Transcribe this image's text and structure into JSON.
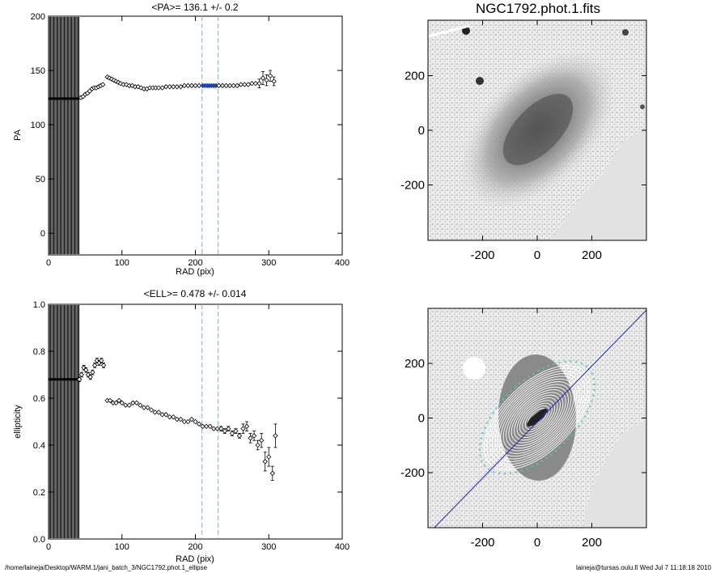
{
  "footer": {
    "path": "/home/laineja/Desktop/WARM.1/jani_batch_3/NGC1792.phot.1_ellipse",
    "user_date": "laineja@tursas.oulu.fi  Wed Jul  7 11:18:18 2010"
  },
  "colors": {
    "pa_fit": "#1f3fb4",
    "dashed_lines": "#40d0d0",
    "image_gray": "#808080",
    "contour": "#ffffff",
    "major_axis_line": "#2020c0",
    "outer_contour": "#55c8c8"
  },
  "chart_data": [
    {
      "type": "scatter",
      "title": "<PA>= 136.1 +/-   0.2",
      "xlabel": "RAD (pix)",
      "ylabel": "PA",
      "xlim": [
        0,
        400
      ],
      "ylim": [
        -20,
        200
      ],
      "xticks": [
        0,
        100,
        200,
        300,
        400
      ],
      "yticks": [
        0,
        50,
        100,
        150,
        200
      ],
      "dense_band": {
        "x_from": 0,
        "x_to": 42,
        "line_value": 124
      },
      "vlines_dashed": [
        209,
        231
      ],
      "series": [
        {
          "x": [
            44,
            47,
            50,
            53,
            56,
            59,
            62,
            65,
            68,
            71,
            74
          ],
          "y": [
            125,
            126,
            128,
            129,
            131,
            133,
            134,
            134,
            135,
            136,
            137
          ]
        },
        {
          "x": [
            80,
            83,
            86,
            89,
            92,
            95,
            98,
            102,
            106,
            110,
            114,
            118,
            122,
            126,
            130,
            134,
            138,
            142,
            146,
            150,
            155,
            160,
            165,
            170,
            175,
            180,
            185,
            190,
            195,
            200,
            205
          ],
          "y": [
            144,
            143,
            142,
            141,
            140,
            139,
            138,
            137,
            137,
            136,
            136,
            135,
            135,
            134,
            133,
            133,
            134,
            134,
            134,
            134,
            134,
            135,
            135,
            135,
            135,
            135,
            136,
            136,
            136,
            136,
            136
          ]
        },
        {
          "x": [
            210,
            213,
            216,
            219,
            222,
            225,
            228
          ],
          "y": [
            136,
            136,
            136,
            136,
            136,
            136,
            136
          ],
          "name_color": "blue"
        },
        {
          "x": [
            232,
            237,
            242,
            247,
            252,
            257,
            262,
            267,
            272,
            277,
            282
          ],
          "y": [
            136,
            136,
            136,
            136,
            136,
            136,
            137,
            137,
            137,
            138,
            138
          ]
        },
        {
          "x": [
            287,
            292,
            297,
            302,
            307
          ],
          "y": [
            138,
            143,
            141,
            145,
            140
          ],
          "err": [
            4,
            6,
            5,
            5,
            4
          ]
        }
      ]
    },
    {
      "type": "scatter",
      "title": "<ELL>= 0.478 +/-   0.014",
      "xlabel": "RAD (pix)",
      "ylabel": "ellipticity",
      "xlim": [
        0,
        400
      ],
      "ylim": [
        0.0,
        1.0
      ],
      "xticks": [
        0,
        100,
        200,
        300,
        400
      ],
      "yticks": [
        0.0,
        0.2,
        0.4,
        0.6,
        0.8,
        1.0
      ],
      "dense_band": {
        "x_from": 0,
        "x_to": 42,
        "line_value": 0.68
      },
      "vlines_dashed": [
        209,
        231
      ],
      "series": [
        {
          "x": [
            42,
            45,
            48,
            51,
            54,
            57,
            60,
            63,
            66,
            69,
            72,
            75
          ],
          "y": [
            0.68,
            0.7,
            0.73,
            0.72,
            0.7,
            0.69,
            0.71,
            0.74,
            0.76,
            0.75,
            0.76,
            0.74
          ],
          "err": [
            0.01,
            0.01,
            0.01,
            0.01,
            0.01,
            0.01,
            0.01,
            0.01,
            0.01,
            0.01,
            0.01,
            0.01
          ]
        },
        {
          "x": [
            80,
            84,
            88,
            92,
            96,
            100,
            105,
            110,
            115,
            120,
            125,
            130,
            135,
            140,
            145,
            150,
            155,
            160,
            165,
            170,
            175,
            180,
            185,
            190,
            195,
            200,
            205
          ],
          "y": [
            0.59,
            0.59,
            0.58,
            0.58,
            0.59,
            0.58,
            0.57,
            0.57,
            0.58,
            0.58,
            0.57,
            0.56,
            0.56,
            0.55,
            0.54,
            0.54,
            0.53,
            0.53,
            0.52,
            0.52,
            0.51,
            0.51,
            0.5,
            0.5,
            0.51,
            0.5,
            0.49
          ]
        },
        {
          "x": [
            210,
            215,
            220,
            225,
            230
          ],
          "y": [
            0.48,
            0.48,
            0.48,
            0.47,
            0.47
          ]
        },
        {
          "x": [
            235,
            240,
            245,
            250,
            255,
            260,
            265,
            270,
            275,
            280,
            285,
            290,
            295,
            300,
            305
          ],
          "y": [
            0.47,
            0.46,
            0.47,
            0.45,
            0.46,
            0.44,
            0.47,
            0.48,
            0.43,
            0.44,
            0.4,
            0.42,
            0.33,
            0.35,
            0.28
          ],
          "err": [
            0.01,
            0.01,
            0.01,
            0.01,
            0.01,
            0.01,
            0.02,
            0.02,
            0.02,
            0.02,
            0.02,
            0.03,
            0.04,
            0.04,
            0.03
          ]
        },
        {
          "x": [
            309
          ],
          "y": [
            0.44
          ],
          "err": [
            0.05
          ]
        }
      ]
    },
    {
      "type": "heatmap",
      "title": "NGC1792.phot.1.fits",
      "xlim": [
        -400,
        400
      ],
      "ylim": [
        -400,
        400
      ],
      "xticks": [
        -200,
        0,
        200
      ],
      "yticks": [
        -200,
        0,
        200
      ],
      "galaxy_pa_deg": 136
    },
    {
      "type": "heatmap",
      "title": "",
      "xlim": [
        -400,
        400
      ],
      "ylim": [
        -400,
        400
      ],
      "xticks": [
        -200,
        0,
        200
      ],
      "yticks": [
        -200,
        0,
        200
      ],
      "galaxy_pa_deg": 136
    }
  ]
}
